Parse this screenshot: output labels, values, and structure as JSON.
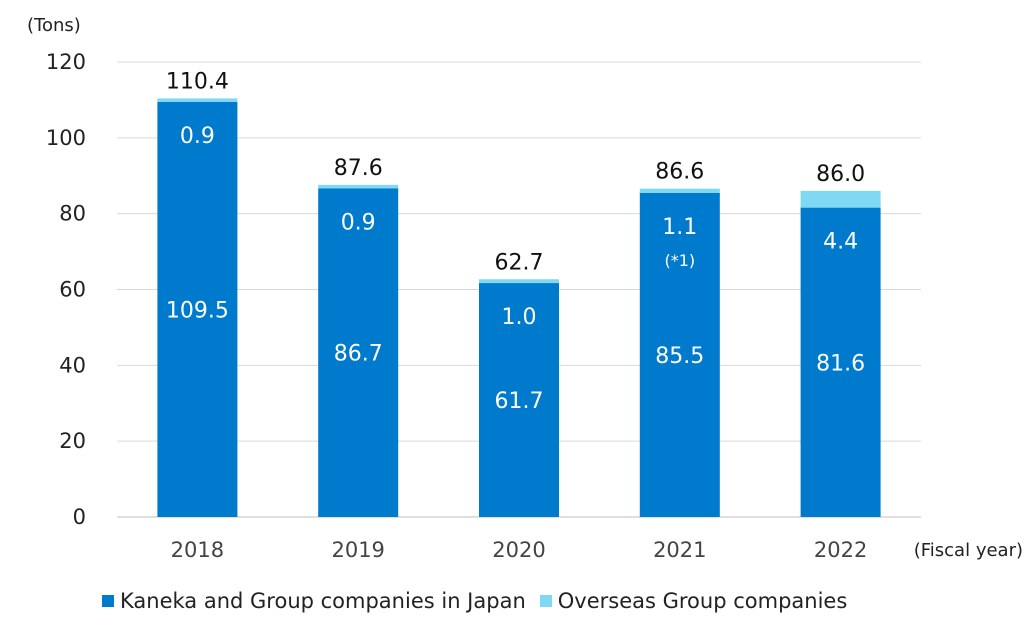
{
  "chart_data": {
    "type": "bar",
    "stacked": true,
    "ylabel": "(Tons)",
    "xlabel": "(Fiscal year)",
    "ylim": [
      0,
      120
    ],
    "yticks": [
      "0",
      "20",
      "40",
      "60",
      "80",
      "100",
      "120"
    ],
    "grid": true,
    "legend_position": "bottom",
    "categories": [
      "2018",
      "2019",
      "2020",
      "2021",
      "2022"
    ],
    "totals": [
      "110.4",
      "87.6",
      "62.7",
      "86.6",
      "86.0"
    ],
    "series": [
      {
        "name": "Kaneka and Group companies in Japan",
        "color": "#007ACC",
        "values": [
          109.5,
          86.7,
          61.7,
          85.5,
          81.6
        ],
        "labels": [
          "109.5",
          "86.7",
          "61.7",
          "85.5",
          "81.6"
        ]
      },
      {
        "name": "Overseas Group companies",
        "color": "#7FD9F5",
        "values": [
          0.9,
          0.9,
          1.0,
          1.1,
          4.4
        ],
        "labels": [
          "0.9",
          "0.9",
          "1.0",
          "1.1",
          "4.4"
        ]
      }
    ],
    "annotations": [
      {
        "category": "2021",
        "text": "(*1)"
      }
    ]
  }
}
